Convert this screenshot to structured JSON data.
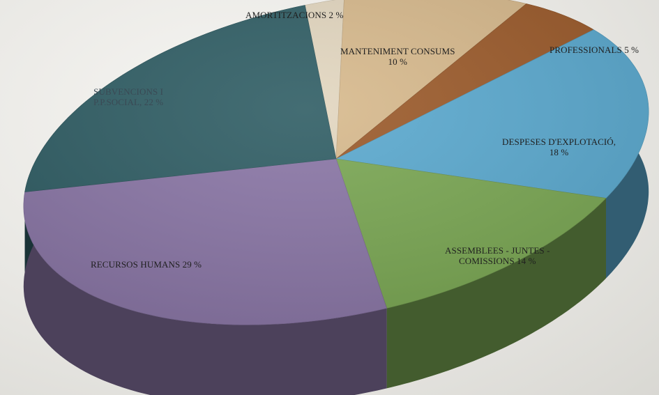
{
  "chart_data": {
    "type": "pie",
    "title": "",
    "slices": [
      {
        "label": "AMORTITZACIONS",
        "value": 2,
        "value_text": "2 %",
        "color": "#e2d6bf"
      },
      {
        "label": "MANTENIMENT CONSUMS",
        "value": 10,
        "value_text": "10 %",
        "color": "#d7b98c"
      },
      {
        "label": "PROFESSIONALS",
        "value": 5,
        "value_text": "5 %",
        "color": "#9b5a2a"
      },
      {
        "label": "DESPESES D'EXPLOTACIÓ,",
        "value": 18,
        "value_text": "18 %",
        "color": "#5aa9cf"
      },
      {
        "label": "ASSEMBLEES - JUNTES -",
        "label2": "COMISSIONS",
        "value": 14,
        "value_text": "14 %",
        "color": "#7aa753"
      },
      {
        "label": "RECURSOS HUMANS",
        "value": 29,
        "value_text": "29 %",
        "color": "#8a76a6"
      },
      {
        "label": "SUBVENCIONS I",
        "label2": "P.P.SOCIAL,",
        "value": 22,
        "value_text": "22 %",
        "color": "#2f5d64"
      }
    ]
  },
  "labels": {
    "amortitzacions": "AMORTITZACIONS 2 %",
    "manteniment_1": "MANTENIMENT CONSUMS",
    "manteniment_2": "10 %",
    "professionals": "PROFESSIONALS 5 %",
    "despeses_1": "DESPESES D'EXPLOTACIÓ,",
    "despeses_2": "18 %",
    "assemblees_1": "ASSEMBLEES - JUNTES -",
    "assemblees_2": "COMISSIONS 14 %",
    "recursos": "RECURSOS HUMANS 29 %",
    "subvencions_1": "SUBVENCIONS I",
    "subvencions_2": "P.P.SOCIAL, 22 %"
  }
}
